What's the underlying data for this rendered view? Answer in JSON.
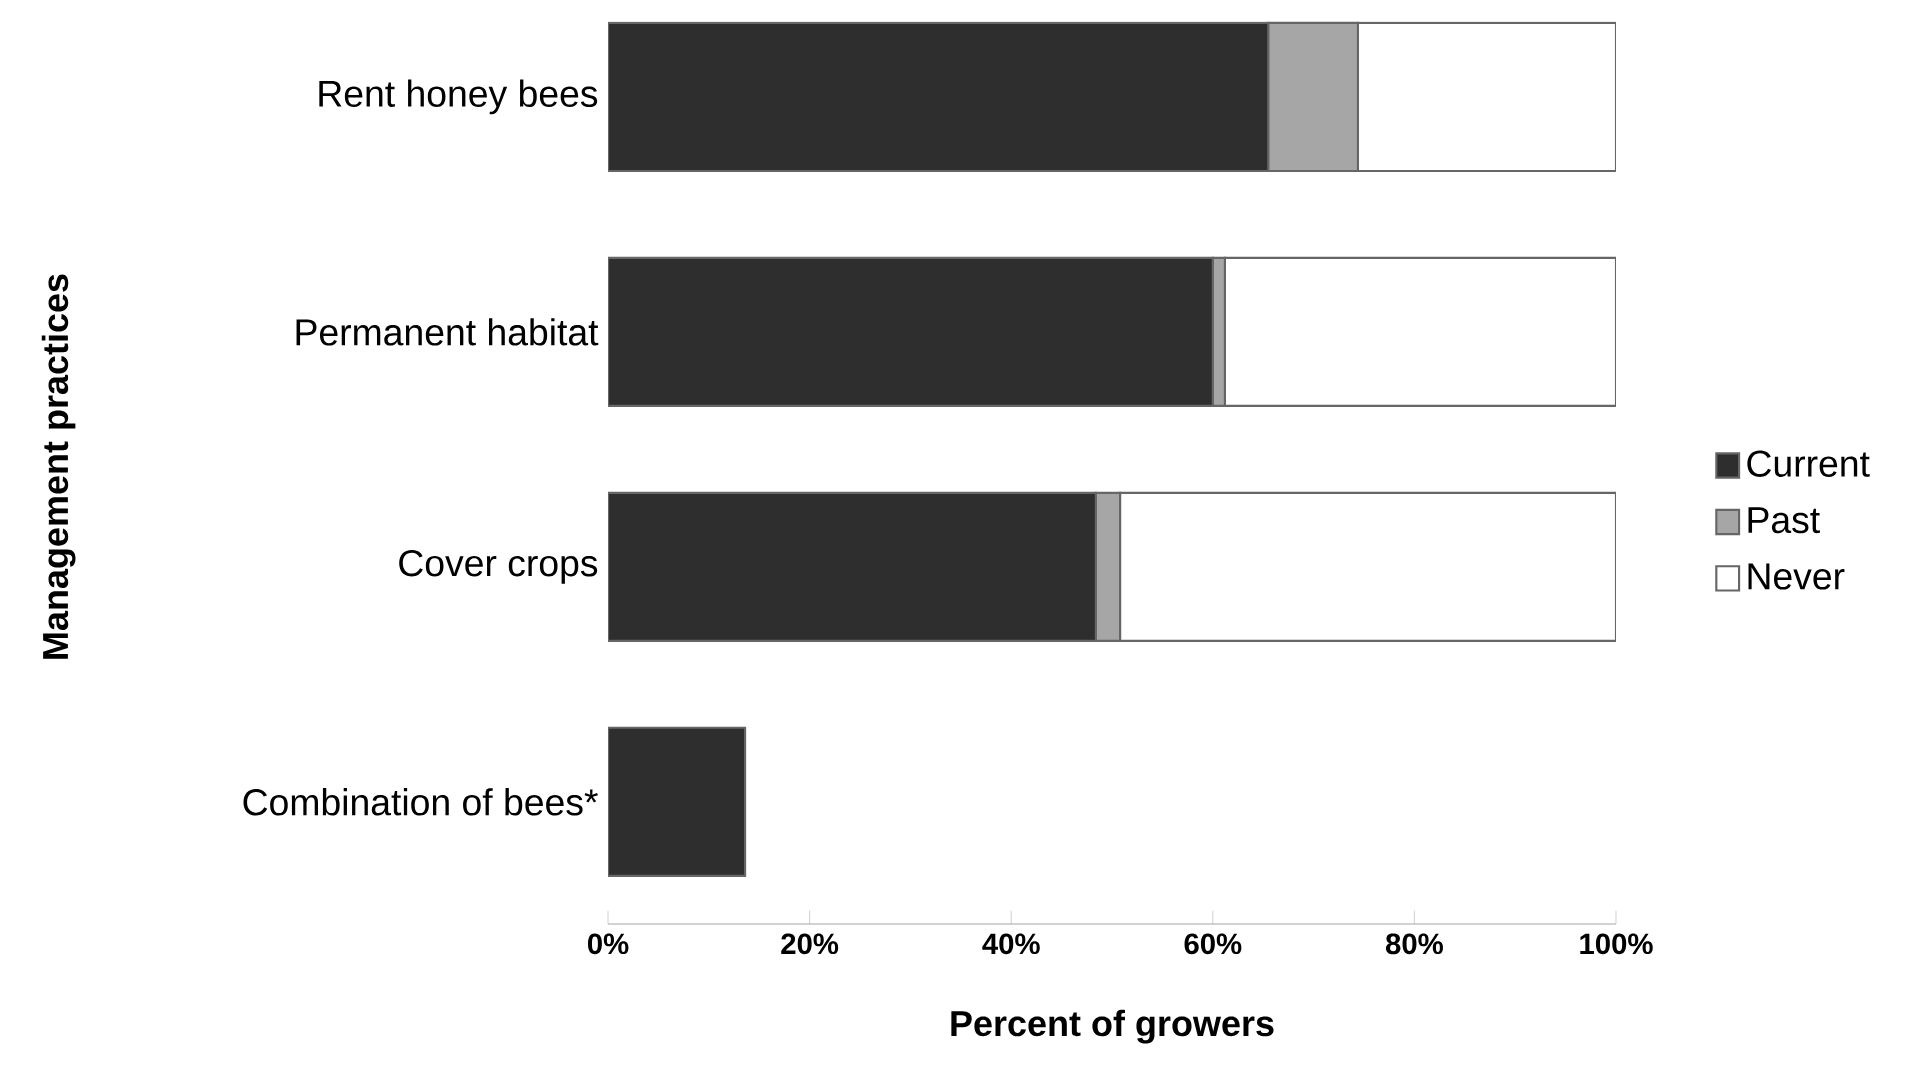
{
  "chart_data": {
    "type": "bar",
    "orientation": "horizontal",
    "stacked": true,
    "xlabel": "Percent of growers",
    "ylabel": "Management practices",
    "categories": [
      "Rent honey bees",
      "Permanent habitat",
      "Cover crops",
      "Combination of bees*"
    ],
    "series": [
      {
        "name": "Current",
        "color": "#2e2e2e",
        "values": [
          65.5,
          60.0,
          48.4,
          13.6
        ]
      },
      {
        "name": "Past",
        "color": "#a6a6a6",
        "values": [
          8.9,
          1.2,
          2.4,
          null
        ]
      },
      {
        "name": "Never",
        "color": "#ffffff",
        "values": [
          25.6,
          38.8,
          49.2,
          null
        ]
      }
    ],
    "xlim": [
      0,
      100
    ],
    "xticks": [
      {
        "value": 0,
        "label": "0%"
      },
      {
        "value": 20,
        "label": "20%"
      },
      {
        "value": 40,
        "label": "40%"
      },
      {
        "value": 60,
        "label": "60%"
      },
      {
        "value": 80,
        "label": "80%"
      },
      {
        "value": 100,
        "label": "100%"
      }
    ],
    "legend": "right"
  }
}
